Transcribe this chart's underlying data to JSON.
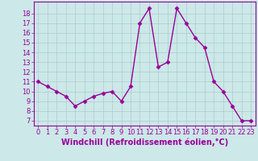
{
  "x": [
    0,
    1,
    2,
    3,
    4,
    5,
    6,
    7,
    8,
    9,
    10,
    11,
    12,
    13,
    14,
    15,
    16,
    17,
    18,
    19,
    20,
    21,
    22,
    23
  ],
  "y": [
    11,
    10.5,
    10,
    9.5,
    8.5,
    9,
    9.5,
    9.8,
    10,
    9,
    10.5,
    17,
    18.5,
    12.5,
    13,
    18.5,
    17,
    15.5,
    14.5,
    11,
    10,
    8.5,
    7,
    7
  ],
  "line_color": "#990099",
  "marker": "D",
  "marker_size": 2.5,
  "bg_color": "#cce8e8",
  "grid_color": "#aacccc",
  "xlabel": "Windchill (Refroidissement éolien,°C)",
  "xlabel_color": "#990099",
  "xlabel_fontsize": 7,
  "tick_label_color": "#990099",
  "tick_fontsize": 6,
  "ylim": [
    6.5,
    19.2
  ],
  "yticks": [
    7,
    8,
    9,
    10,
    11,
    12,
    13,
    14,
    15,
    16,
    17,
    18
  ],
  "xlim": [
    -0.5,
    23.5
  ],
  "xticks": [
    0,
    1,
    2,
    3,
    4,
    5,
    6,
    7,
    8,
    9,
    10,
    11,
    12,
    13,
    14,
    15,
    16,
    17,
    18,
    19,
    20,
    21,
    22,
    23
  ],
  "spine_color": "#990099",
  "line_width": 1.0
}
